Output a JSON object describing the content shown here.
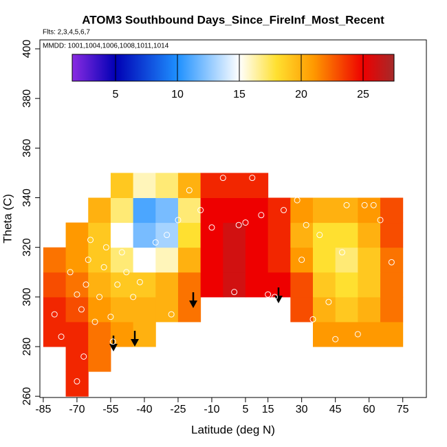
{
  "chart_data": {
    "type": "heatmap",
    "title": "ATOM3 Southbound Days_Since_FireInf_Most_Recent",
    "subtitle": "Flts: 2,3,4,5,6,7",
    "annotation": "MMDD: 1001,1004,1006,1008,1011,1014",
    "x_label": "Latitude (deg N)",
    "y_label": "Theta (C)",
    "xlim": [
      -86.5,
      85.5
    ],
    "ylim": [
      259.5,
      403.6
    ],
    "xticks": [
      -85,
      -70,
      -55,
      -40,
      -25,
      -10,
      5,
      15,
      30,
      45,
      60,
      75
    ],
    "yticks": [
      260,
      280,
      300,
      320,
      340,
      360,
      380,
      400
    ],
    "clim": [
      1.5,
      27.5
    ],
    "cticks": [
      5,
      10,
      15,
      20,
      25
    ],
    "colorscale": [
      [
        1.5,
        "#8a2be2"
      ],
      [
        5,
        "#0000b4"
      ],
      [
        10,
        "#1e90ff"
      ],
      [
        15,
        "#ffffff"
      ],
      [
        18,
        "#ffe030"
      ],
      [
        21,
        "#ff9900"
      ],
      [
        25,
        "#ee0000"
      ],
      [
        27.5,
        "#a52a2a"
      ]
    ],
    "x": [
      -80,
      -70,
      -60,
      -50,
      -40,
      -30,
      -20,
      -10,
      0,
      10,
      20,
      30,
      40,
      50,
      60,
      70
    ],
    "y": [
      265,
      275,
      285,
      295,
      305,
      315,
      325,
      335,
      345
    ],
    "z": [
      [
        null,
        24,
        null,
        null,
        null,
        null,
        null,
        null,
        null,
        null,
        null,
        null,
        null,
        null,
        null,
        null
      ],
      [
        null,
        24,
        22,
        null,
        null,
        null,
        null,
        null,
        null,
        null,
        null,
        null,
        null,
        null,
        null,
        null
      ],
      [
        24,
        24,
        22,
        21,
        20,
        null,
        null,
        null,
        null,
        null,
        null,
        null,
        21,
        21,
        21,
        21
      ],
      [
        24,
        23,
        21,
        20,
        20,
        20,
        22,
        null,
        null,
        null,
        null,
        23,
        20,
        19,
        20,
        22
      ],
      [
        23,
        22,
        20,
        19,
        19,
        20,
        22,
        25,
        26,
        25,
        25,
        23,
        19,
        18,
        19,
        22
      ],
      [
        22,
        21,
        19,
        17,
        15,
        16,
        20,
        25,
        26,
        25,
        24,
        21,
        18,
        17,
        19,
        22
      ],
      [
        null,
        21,
        19,
        15,
        12,
        13,
        18,
        25,
        26,
        25,
        24,
        20,
        18,
        18,
        20,
        23
      ],
      [
        null,
        null,
        20,
        17,
        11,
        12,
        17,
        25,
        25,
        25,
        24,
        21,
        20,
        20,
        21,
        23
      ],
      [
        null,
        null,
        null,
        19,
        16,
        17,
        20,
        24,
        24,
        24,
        null,
        null,
        null,
        null,
        null,
        null
      ]
    ],
    "points": {
      "x": [
        -80,
        -77,
        -73,
        -70,
        -68,
        -66,
        -65,
        -64,
        -62,
        -60,
        -58,
        -57,
        -55,
        -54,
        -52,
        -50,
        -48,
        -46,
        -45,
        -42,
        -40,
        -35,
        -30,
        -25,
        -20,
        -15,
        -10,
        -5,
        0,
        2,
        5,
        8,
        12,
        15,
        18,
        20,
        22,
        28,
        30,
        32,
        35,
        38,
        42,
        45,
        48,
        50,
        55,
        58,
        62,
        65,
        70,
        -70,
        -67,
        -28
      ],
      "y": [
        293,
        284,
        310,
        301,
        295,
        305,
        315,
        323,
        290,
        300,
        312,
        320,
        292,
        282,
        305,
        318,
        310,
        278,
        300,
        306,
        314,
        322,
        325,
        331,
        343,
        335,
        328,
        348,
        302,
        329,
        330,
        348,
        333,
        301,
        300,
        342,
        335,
        339,
        315,
        329,
        291,
        325,
        298,
        283,
        318,
        337,
        285,
        337,
        337,
        331,
        314,
        266,
        276,
        293
      ]
    }
  }
}
